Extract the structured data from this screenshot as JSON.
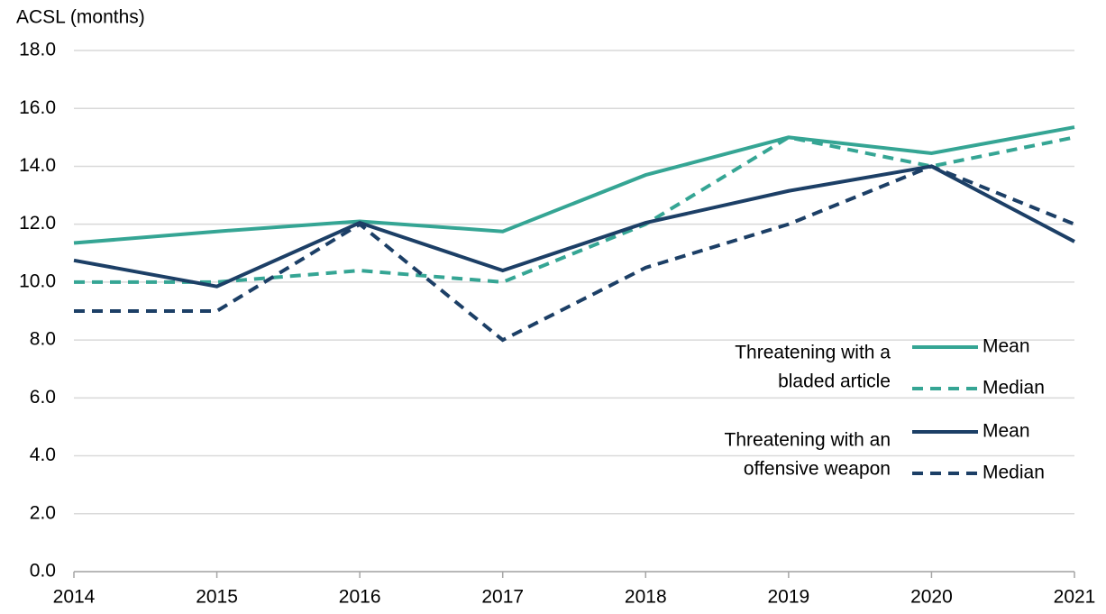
{
  "chart_data": {
    "type": "line",
    "y_axis_label": "ACSL (months)",
    "categories": [
      "2014",
      "2015",
      "2016",
      "2017",
      "2018",
      "2019",
      "2020",
      "2021"
    ],
    "series": [
      {
        "name": "Mean",
        "color": "#35a594",
        "dashed": false,
        "values": [
          11.35,
          11.75,
          12.1,
          11.75,
          13.7,
          15.0,
          14.45,
          15.35
        ]
      },
      {
        "name": "Median",
        "color": "#35a594",
        "dashed": true,
        "values": [
          10.0,
          10.0,
          10.4,
          10.0,
          12.0,
          15.0,
          14.0,
          15.0
        ]
      },
      {
        "name": "Mean",
        "color": "#1c3f66",
        "dashed": false,
        "values": [
          10.75,
          9.85,
          12.05,
          10.4,
          12.05,
          13.15,
          14.0,
          11.4
        ]
      },
      {
        "name": "Median",
        "color": "#1c3f66",
        "dashed": true,
        "values": [
          9.0,
          9.0,
          12.0,
          8.0,
          10.5,
          12.0,
          14.0,
          12.0
        ]
      }
    ],
    "legend_groups": [
      [
        "Threatening with a",
        "bladed article"
      ],
      [
        "Threatening with an",
        "offensive weapon"
      ]
    ],
    "ylim": [
      0,
      18
    ],
    "yticks": [
      {
        "value": 0,
        "label": "0.0"
      },
      {
        "value": 2,
        "label": "2.0"
      },
      {
        "value": 4,
        "label": "4.0"
      },
      {
        "value": 6,
        "label": "6.0"
      },
      {
        "value": 8,
        "label": "8.0"
      },
      {
        "value": 10,
        "label": "10.0"
      },
      {
        "value": 12,
        "label": "12.0"
      },
      {
        "value": 14,
        "label": "14.0"
      },
      {
        "value": 16,
        "label": "16.0"
      },
      {
        "value": 18,
        "label": "18.0"
      }
    ],
    "grid": true
  }
}
